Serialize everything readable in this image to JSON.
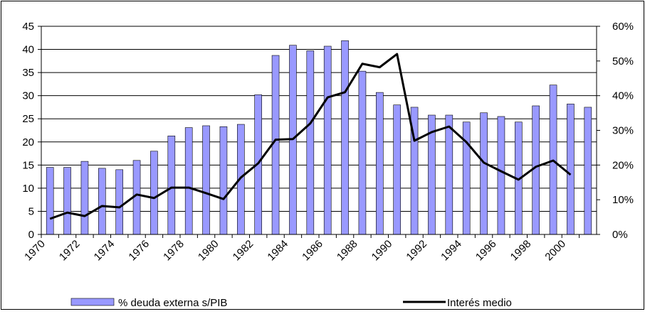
{
  "chart_data": {
    "type": "bar-line",
    "categories": [
      "1970",
      null,
      "1972",
      null,
      "1974",
      null,
      "1976",
      null,
      "1978",
      null,
      "1980",
      null,
      "1982",
      null,
      "1984",
      null,
      "1986",
      null,
      "1988",
      null,
      "1990",
      null,
      "1992",
      null,
      "1994",
      null,
      "1996",
      null,
      "1998",
      null,
      "2000",
      null
    ],
    "series": [
      {
        "name": "% deuda externa s/PIB",
        "type": "bar",
        "color": "#9999ff",
        "values": [
          14.5,
          14.5,
          15.8,
          14.3,
          14.0,
          16.0,
          18.0,
          21.3,
          23.1,
          23.5,
          23.3,
          23.8,
          30.2,
          38.7,
          40.9,
          39.7,
          40.7,
          41.9,
          35.3,
          30.7,
          28.0,
          27.5,
          25.8,
          25.8,
          24.3,
          26.3,
          25.5,
          24.3,
          27.8,
          32.3,
          28.2,
          27.5
        ]
      },
      {
        "name": "Interés medio",
        "type": "line",
        "axis": "y2",
        "color": "#000000",
        "values": [
          4.5,
          6.3,
          5.3,
          8.2,
          7.8,
          11.5,
          10.5,
          13.5,
          13.5,
          11.9,
          10.2,
          16.4,
          20.5,
          27.3,
          27.5,
          32.0,
          39.5,
          41.0,
          49.2,
          48.2,
          52.0,
          27.0,
          29.5,
          31.1,
          26.6,
          20.7,
          18.2,
          15.8,
          19.5,
          21.3,
          17.2,
          null
        ]
      }
    ],
    "ylim": [
      0,
      45
    ],
    "yticks": [
      0,
      5,
      10,
      15,
      20,
      25,
      30,
      35,
      40,
      45
    ],
    "y2lim": [
      0,
      60
    ],
    "y2ticks": [
      {
        "value": 0,
        "label": "0%"
      },
      {
        "value": 10,
        "label": "10%"
      },
      {
        "value": 20,
        "label": "20%"
      },
      {
        "value": 30,
        "label": "30%"
      },
      {
        "value": 40,
        "label": "40%"
      },
      {
        "value": 50,
        "label": "50%"
      },
      {
        "value": 60,
        "label": "60%"
      }
    ],
    "grid": true,
    "legend": "bottom"
  }
}
